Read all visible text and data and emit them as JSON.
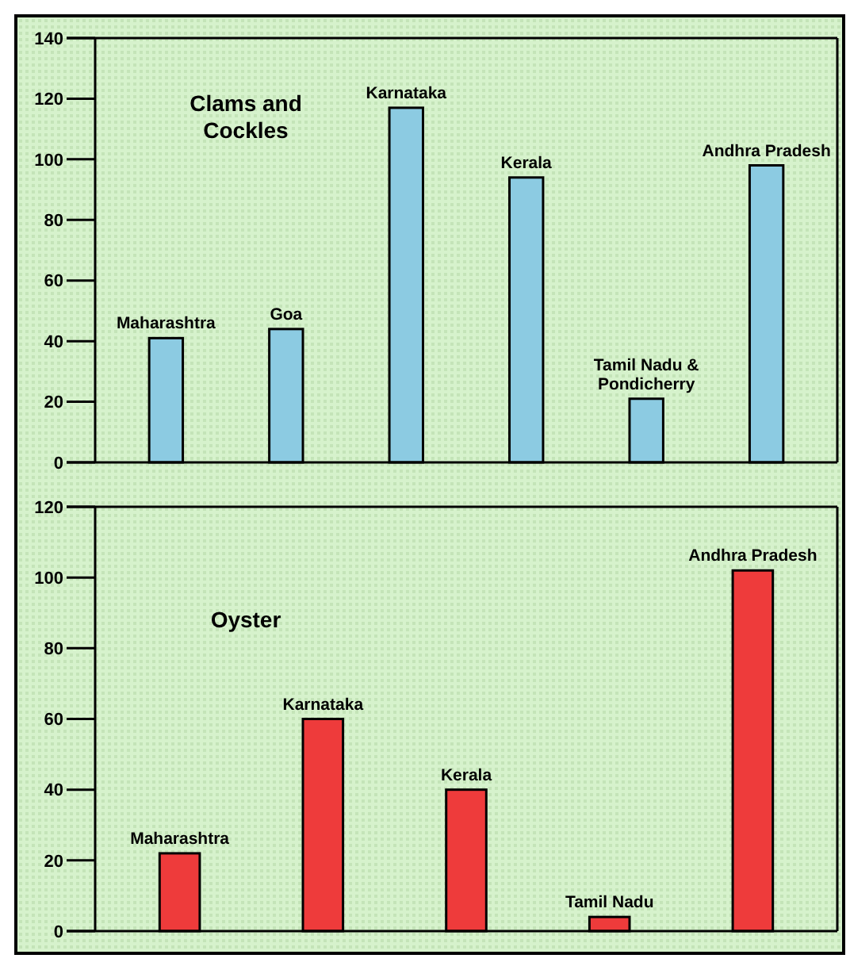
{
  "chart_data": [
    {
      "type": "bar",
      "title": "Clams and Cockles",
      "categories": [
        "Maharashtra",
        "Goa",
        "Karnataka",
        "Kerala",
        "Tamil Nadu & Pondicherry",
        "Andhra Pradesh"
      ],
      "values": [
        41,
        44,
        117,
        94,
        21,
        98
      ],
      "color": "#8ccbe2",
      "ylim": [
        0,
        140
      ],
      "yticks": [
        0,
        20,
        40,
        60,
        80,
        100,
        120,
        140
      ],
      "grid": false
    },
    {
      "type": "bar",
      "title": "Oyster",
      "categories": [
        "Maharashtra",
        "Karnataka",
        "Kerala",
        "Tamil Nadu",
        "Andhra Pradesh"
      ],
      "values": [
        22,
        60,
        40,
        4,
        102
      ],
      "color": "#ee3b3b",
      "ylim": [
        0,
        120
      ],
      "yticks": [
        0,
        20,
        40,
        60,
        80,
        100,
        120
      ],
      "grid": false
    }
  ]
}
